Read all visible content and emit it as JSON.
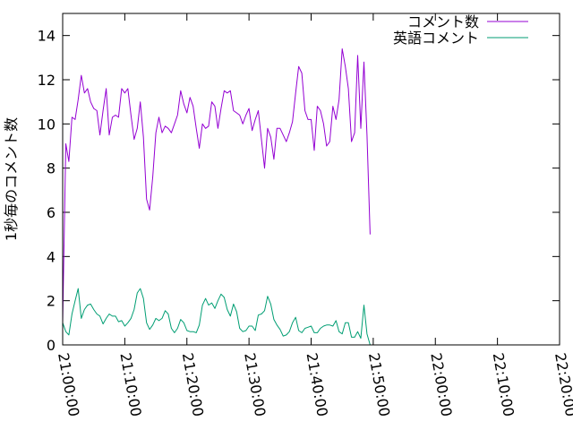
{
  "chart_data": {
    "type": "line",
    "title": "",
    "xlabel": "",
    "ylabel": "1秒毎のコメント数",
    "xlim_minutes": [
      0,
      80
    ],
    "ylim": [
      0,
      15
    ],
    "x_ticks": [
      {
        "minute": 0,
        "label": "21:00:00"
      },
      {
        "minute": 10,
        "label": "21:10:00"
      },
      {
        "minute": 20,
        "label": "21:20:00"
      },
      {
        "minute": 30,
        "label": "21:30:00"
      },
      {
        "minute": 40,
        "label": "21:40:00"
      },
      {
        "minute": 50,
        "label": "21:50:00"
      },
      {
        "minute": 60,
        "label": "22:00:00"
      },
      {
        "minute": 70,
        "label": "22:10:00"
      },
      {
        "minute": 80,
        "label": "22:20:00"
      }
    ],
    "y_ticks": [
      0,
      2,
      4,
      6,
      8,
      10,
      12,
      14
    ],
    "grid": false,
    "legend_position": "top-right",
    "series": [
      {
        "name": "コメント数",
        "color": "#9400d3",
        "points": [
          [
            0,
            1.0
          ],
          [
            0.5,
            9.1
          ],
          [
            1,
            8.3
          ],
          [
            1.5,
            10.3
          ],
          [
            2,
            10.2
          ],
          [
            2.5,
            11.1
          ],
          [
            3,
            12.2
          ],
          [
            3.5,
            11.4
          ],
          [
            4,
            11.6
          ],
          [
            4.5,
            11.0
          ],
          [
            5,
            10.7
          ],
          [
            5.5,
            10.6
          ],
          [
            6,
            9.5
          ],
          [
            6.5,
            10.6
          ],
          [
            7,
            11.6
          ],
          [
            7.5,
            9.5
          ],
          [
            8,
            10.3
          ],
          [
            8.5,
            10.4
          ],
          [
            9,
            10.3
          ],
          [
            9.5,
            11.6
          ],
          [
            10,
            11.4
          ],
          [
            10.5,
            11.6
          ],
          [
            11,
            10.4
          ],
          [
            11.5,
            9.3
          ],
          [
            12,
            9.8
          ],
          [
            12.5,
            11.0
          ],
          [
            13,
            9.4
          ],
          [
            13.5,
            6.6
          ],
          [
            14,
            6.1
          ],
          [
            14.5,
            7.6
          ],
          [
            15,
            9.6
          ],
          [
            15.5,
            10.3
          ],
          [
            16,
            9.6
          ],
          [
            16.5,
            9.9
          ],
          [
            17,
            9.8
          ],
          [
            17.5,
            9.6
          ],
          [
            18,
            10.0
          ],
          [
            18.5,
            10.4
          ],
          [
            19,
            11.5
          ],
          [
            19.5,
            10.9
          ],
          [
            20,
            10.5
          ],
          [
            20.5,
            11.2
          ],
          [
            21,
            10.8
          ],
          [
            21.5,
            9.8
          ],
          [
            22,
            8.9
          ],
          [
            22.5,
            10.0
          ],
          [
            23,
            9.8
          ],
          [
            23.5,
            9.9
          ],
          [
            24,
            11.0
          ],
          [
            24.5,
            10.8
          ],
          [
            25,
            9.8
          ],
          [
            25.5,
            10.7
          ],
          [
            26,
            11.5
          ],
          [
            26.5,
            11.4
          ],
          [
            27,
            11.5
          ],
          [
            27.5,
            10.6
          ],
          [
            28,
            10.5
          ],
          [
            28.5,
            10.4
          ],
          [
            29,
            10.0
          ],
          [
            29.5,
            10.4
          ],
          [
            30,
            10.7
          ],
          [
            30.5,
            9.7
          ],
          [
            31,
            10.2
          ],
          [
            31.5,
            10.6
          ],
          [
            32,
            9.3
          ],
          [
            32.5,
            8.0
          ],
          [
            33,
            9.8
          ],
          [
            33.5,
            9.4
          ],
          [
            34,
            8.4
          ],
          [
            34.5,
            9.8
          ],
          [
            35,
            9.8
          ],
          [
            35.5,
            9.5
          ],
          [
            36,
            9.2
          ],
          [
            36.5,
            9.6
          ],
          [
            37,
            10.1
          ],
          [
            37.5,
            11.4
          ],
          [
            38,
            12.6
          ],
          [
            38.5,
            12.3
          ],
          [
            39,
            10.6
          ],
          [
            39.5,
            10.2
          ],
          [
            40,
            10.2
          ],
          [
            40.5,
            8.8
          ],
          [
            41,
            10.8
          ],
          [
            41.5,
            10.6
          ],
          [
            42,
            10.0
          ],
          [
            42.5,
            9.0
          ],
          [
            43,
            9.2
          ],
          [
            43.5,
            10.8
          ],
          [
            44,
            10.2
          ],
          [
            44.5,
            11.1
          ],
          [
            45,
            13.4
          ],
          [
            45.5,
            12.6
          ],
          [
            46,
            11.6
          ],
          [
            46.5,
            9.2
          ],
          [
            47,
            9.6
          ],
          [
            47.5,
            13.1
          ],
          [
            48,
            9.8
          ],
          [
            48.5,
            12.8
          ],
          [
            49,
            9.5
          ],
          [
            49.5,
            5.0
          ]
        ]
      },
      {
        "name": "英語コメント",
        "color": "#009e73",
        "points": [
          [
            0,
            1.0
          ],
          [
            0.5,
            0.6
          ],
          [
            1,
            0.45
          ],
          [
            1.5,
            1.4
          ],
          [
            2,
            2.0
          ],
          [
            2.5,
            2.55
          ],
          [
            3,
            1.2
          ],
          [
            3.5,
            1.6
          ],
          [
            4,
            1.8
          ],
          [
            4.5,
            1.85
          ],
          [
            5,
            1.6
          ],
          [
            5.5,
            1.4
          ],
          [
            6,
            1.3
          ],
          [
            6.5,
            0.95
          ],
          [
            7,
            1.2
          ],
          [
            7.5,
            1.4
          ],
          [
            8,
            1.3
          ],
          [
            8.5,
            1.3
          ],
          [
            9,
            1.05
          ],
          [
            9.5,
            1.1
          ],
          [
            10,
            0.85
          ],
          [
            10.5,
            1.0
          ],
          [
            11,
            1.2
          ],
          [
            11.5,
            1.6
          ],
          [
            12,
            2.35
          ],
          [
            12.5,
            2.55
          ],
          [
            13,
            2.1
          ],
          [
            13.5,
            1.0
          ],
          [
            14,
            0.7
          ],
          [
            14.5,
            0.9
          ],
          [
            15,
            1.2
          ],
          [
            15.5,
            1.1
          ],
          [
            16,
            1.2
          ],
          [
            16.5,
            1.55
          ],
          [
            17,
            1.4
          ],
          [
            17.5,
            0.75
          ],
          [
            18,
            0.55
          ],
          [
            18.5,
            0.75
          ],
          [
            19,
            1.15
          ],
          [
            19.5,
            1.0
          ],
          [
            20,
            0.65
          ],
          [
            20.5,
            0.6
          ],
          [
            21,
            0.6
          ],
          [
            21.5,
            0.55
          ],
          [
            22,
            0.9
          ],
          [
            22.5,
            1.8
          ],
          [
            23,
            2.1
          ],
          [
            23.5,
            1.8
          ],
          [
            24,
            1.9
          ],
          [
            24.5,
            1.65
          ],
          [
            25,
            2.0
          ],
          [
            25.5,
            2.3
          ],
          [
            26,
            2.15
          ],
          [
            26.5,
            1.6
          ],
          [
            27,
            1.3
          ],
          [
            27.5,
            1.85
          ],
          [
            28,
            1.5
          ],
          [
            28.5,
            0.75
          ],
          [
            29,
            0.6
          ],
          [
            29.5,
            0.65
          ],
          [
            30,
            0.85
          ],
          [
            30.5,
            0.85
          ],
          [
            31,
            0.65
          ],
          [
            31.5,
            1.35
          ],
          [
            32,
            1.4
          ],
          [
            32.5,
            1.55
          ],
          [
            33,
            2.2
          ],
          [
            33.5,
            1.85
          ],
          [
            34,
            1.15
          ],
          [
            34.5,
            0.9
          ],
          [
            35,
            0.7
          ],
          [
            35.5,
            0.4
          ],
          [
            36,
            0.45
          ],
          [
            36.5,
            0.6
          ],
          [
            37,
            1.0
          ],
          [
            37.5,
            1.25
          ],
          [
            38,
            0.65
          ],
          [
            38.5,
            0.55
          ],
          [
            39,
            0.75
          ],
          [
            39.5,
            0.8
          ],
          [
            40,
            0.85
          ],
          [
            40.5,
            0.55
          ],
          [
            41,
            0.55
          ],
          [
            41.5,
            0.75
          ],
          [
            42,
            0.85
          ],
          [
            42.5,
            0.9
          ],
          [
            43,
            0.9
          ],
          [
            43.5,
            0.85
          ],
          [
            44,
            1.1
          ],
          [
            44.5,
            0.6
          ],
          [
            45,
            0.5
          ],
          [
            45.5,
            1.0
          ],
          [
            46,
            1.0
          ],
          [
            46.5,
            0.35
          ],
          [
            47,
            0.35
          ],
          [
            47.5,
            0.6
          ],
          [
            48,
            0.3
          ],
          [
            48.5,
            1.8
          ],
          [
            49,
            0.5
          ],
          [
            49.5,
            0.0
          ]
        ]
      }
    ]
  }
}
